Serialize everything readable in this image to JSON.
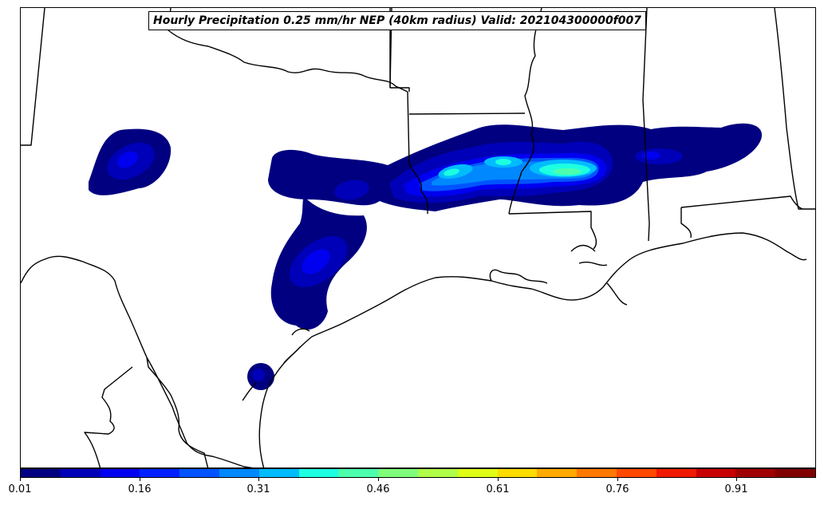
{
  "map": {
    "title": "Hourly Precipitation 0.25 mm/hr NEP (40km radius) Valid: 202104300000f007",
    "region": "Southern United States (Texas, Oklahoma, Arkansas, Louisiana, Mississippi, Alabama)",
    "basemap": "state boundaries and coastlines, black lines on white"
  },
  "colorbar": {
    "colormap": "jet",
    "bin_count": 20,
    "min": 0.01,
    "max": 1.0,
    "colors": [
      "#000080",
      "#0000b8",
      "#0000f0",
      "#0020ff",
      "#0054ff",
      "#0088ff",
      "#00bcff",
      "#1cffe0",
      "#4cffad",
      "#80ff7a",
      "#b0ff48",
      "#e0ff16",
      "#ffdc00",
      "#ffaa00",
      "#ff7800",
      "#ff4800",
      "#f01a00",
      "#c80000",
      "#a00000",
      "#800000"
    ],
    "tick_labels": [
      "0.01",
      "0.16",
      "0.31",
      "0.46",
      "0.61",
      "0.76",
      "0.91"
    ]
  },
  "chart_data": {
    "type": "heatmap",
    "title": "Hourly Precipitation 0.25 mm/hr NEP (40km radius) Valid: 202104300000f007",
    "variable": "Neighborhood exceedance probability of 0.25 mm/hr hourly precipitation",
    "neighborhood_radius_km": 40,
    "valid": "202104300000f007",
    "scale_range": [
      0.01,
      1.0
    ],
    "features": [
      {
        "area": "West Texas",
        "max_probability_approx": 0.16
      },
      {
        "area": "North-central Texas to Red River",
        "max_probability_approx": 0.13
      },
      {
        "area": "East-central Texas",
        "max_probability_approx": 0.2
      },
      {
        "area": "Coastal Bend Texas",
        "max_probability_approx": 0.06
      },
      {
        "area": "Northern Louisiana / southern Arkansas",
        "max_probability_approx": 0.36
      },
      {
        "area": "Northern Mississippi",
        "max_probability_approx": 0.44
      },
      {
        "area": "Northern Alabama",
        "max_probability_approx": 0.1
      }
    ]
  }
}
